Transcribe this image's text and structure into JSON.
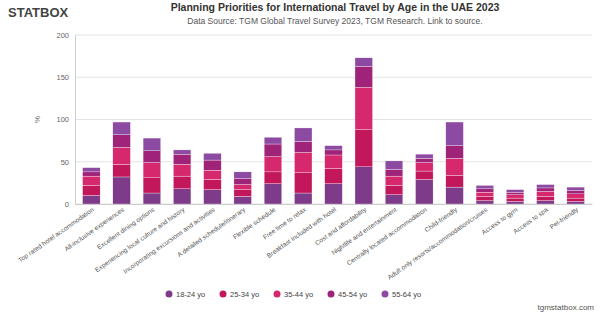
{
  "chart_data": {
    "type": "bar",
    "stacked": true,
    "grid": true,
    "legend": "bottom",
    "logo": "STATBOX",
    "title": "Planning Priorities for International Travel by Age in the UAE 2023",
    "subtitle": "Data Source: TGM Global Travel Survey 2023, TGM Research. Link to source.",
    "footer": "tgmstatbox.com",
    "y_label": "%",
    "categories": [
      "Top rated hotel accommodation",
      "All-inclusive experiences",
      "Excellent dining options",
      "Experiencing local culture and history",
      "Incorporating excursions and activities",
      "A detailed schedule/itinerary",
      "Flexible schedule",
      "Free time to relax",
      "Breakfast included with hotel",
      "Cost and affordability",
      "Nightlife and entertainment",
      "Centrally located accommodation",
      "Child-friendly",
      "Adult only resorts/accommodation/cruises",
      "Access to gym",
      "Access to spa",
      "Pet-friendly"
    ],
    "series": [
      {
        "name": "18-24 yo",
        "color": "#7e3b8a",
        "values": [
          10,
          32,
          13,
          18,
          17,
          9,
          24,
          13,
          24,
          44,
          11,
          29,
          20,
          4,
          3,
          4,
          3
        ]
      },
      {
        "name": "25-34 yo",
        "color": "#c2185b",
        "values": [
          12,
          15,
          18,
          15,
          12,
          8,
          14,
          24,
          18,
          44,
          11,
          10,
          14,
          5,
          4,
          5,
          4
        ]
      },
      {
        "name": "35-44 yo",
        "color": "#d6286c",
        "values": [
          11,
          20,
          18,
          14,
          11,
          6,
          18,
          24,
          16,
          50,
          11,
          10,
          20,
          5,
          4,
          6,
          5
        ]
      },
      {
        "name": "45-54 yo",
        "color": "#a0237a",
        "values": [
          5,
          15,
          14,
          12,
          12,
          7,
          15,
          13,
          6,
          25,
          8,
          5,
          15,
          4,
          3,
          4,
          4
        ]
      },
      {
        "name": "55-64 yo",
        "color": "#8d4aa3",
        "values": [
          5,
          15,
          15,
          5,
          8,
          8,
          8,
          16,
          5,
          10,
          10,
          5,
          28,
          4,
          3,
          4,
          4
        ]
      }
    ],
    "ylim": [
      0,
      200
    ],
    "yticks": [
      0,
      50,
      100,
      150,
      200
    ]
  }
}
